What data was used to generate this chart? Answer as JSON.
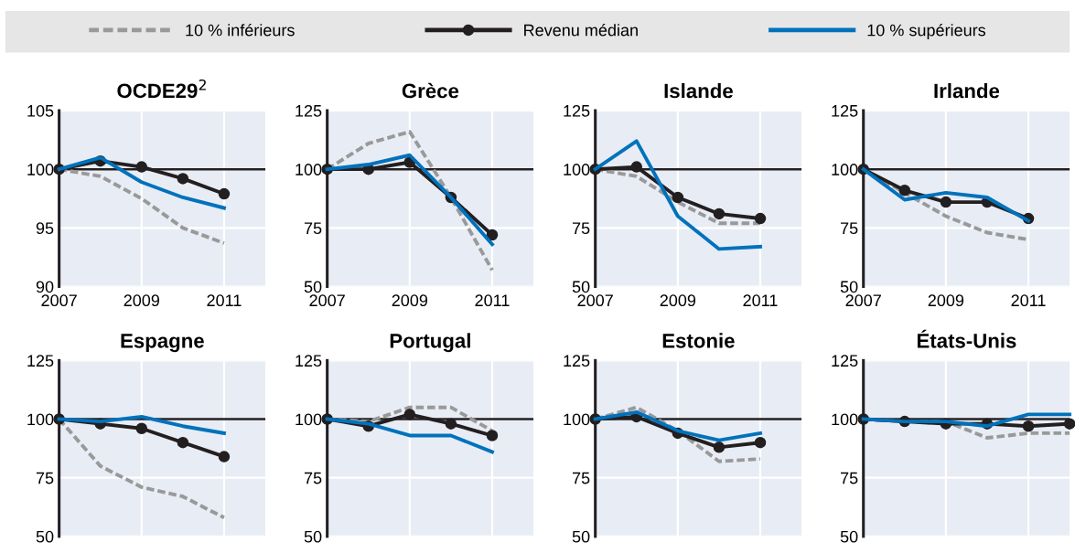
{
  "chart_data": [
    {
      "type": "line",
      "title": "OCDE29$^{2}$",
      "legend": "top",
      "grid": true,
      "x": [
        2007,
        2008,
        2009,
        2010,
        2011
      ],
      "xlim": [
        2007,
        2012
      ],
      "xticks": [
        2007,
        2009,
        2011
      ],
      "ylim": [
        90,
        105
      ],
      "yticks": [
        90,
        95,
        100,
        105
      ],
      "ref_lines": [
        {
          "axis": "y",
          "value": 100,
          "color": "#231f20"
        }
      ],
      "series": [
        {
          "name": "10 % inférieurs",
          "color": "#999999",
          "line_style": "dashed",
          "marker": "none",
          "values": [
            100,
            99.4,
            97.5,
            95,
            93.7
          ]
        },
        {
          "name": "Revenu médian",
          "color": "#231f20",
          "line_style": "solid",
          "marker": "circle",
          "values": [
            100,
            100.7,
            100.2,
            99.2,
            97.9
          ]
        },
        {
          "name": "10 % supérieurs",
          "color": "#0072bc",
          "line_style": "solid",
          "marker": "none",
          "values": [
            100,
            101,
            98.9,
            97.6,
            96.7
          ]
        }
      ]
    },
    {
      "type": "line",
      "title": "Grèce",
      "grid": true,
      "x": [
        2007,
        2008,
        2009,
        2010,
        2011
      ],
      "xlim": [
        2007,
        2012
      ],
      "xticks": [
        2007,
        2009,
        2011
      ],
      "ylim": [
        50,
        125
      ],
      "yticks": [
        50,
        75,
        100,
        125
      ],
      "ref_lines": [
        {
          "axis": "y",
          "value": 100,
          "color": "#231f20"
        }
      ],
      "series": [
        {
          "color": "#999999",
          "line_style": "dashed",
          "marker": "none",
          "values": [
            100,
            111,
            116,
            88,
            57
          ]
        },
        {
          "color": "#231f20",
          "line_style": "solid",
          "marker": "circle",
          "values": [
            100,
            100,
            103,
            88,
            72
          ]
        },
        {
          "color": "#0072bc",
          "line_style": "solid",
          "marker": "none",
          "values": [
            100,
            102,
            106,
            88,
            68
          ]
        }
      ]
    },
    {
      "type": "line",
      "title": "Islande",
      "grid": true,
      "x": [
        2007,
        2008,
        2009,
        2010,
        2011
      ],
      "xlim": [
        2007,
        2012
      ],
      "xticks": [
        2007,
        2009,
        2011
      ],
      "ylim": [
        50,
        125
      ],
      "yticks": [
        50,
        75,
        100,
        125
      ],
      "ref_lines": [
        {
          "axis": "y",
          "value": 100,
          "color": "#231f20"
        }
      ],
      "series": [
        {
          "color": "#999999",
          "line_style": "dashed",
          "marker": "none",
          "values": [
            100,
            97,
            86,
            77,
            77
          ]
        },
        {
          "color": "#231f20",
          "line_style": "solid",
          "marker": "circle",
          "values": [
            100,
            101,
            88,
            81,
            79
          ]
        },
        {
          "color": "#0072bc",
          "line_style": "solid",
          "marker": "none",
          "values": [
            100,
            112,
            80,
            66,
            67
          ]
        }
      ]
    },
    {
      "type": "line",
      "title": "Irlande",
      "grid": true,
      "x": [
        2007,
        2008,
        2009,
        2010,
        2011
      ],
      "xlim": [
        2007,
        2012
      ],
      "xticks": [
        2007,
        2009,
        2011
      ],
      "ylim": [
        50,
        125
      ],
      "yticks": [
        50,
        75,
        100,
        125
      ],
      "ref_lines": [
        {
          "axis": "y",
          "value": 100,
          "color": "#231f20"
        }
      ],
      "series": [
        {
          "color": "#999999",
          "line_style": "dashed",
          "marker": "none",
          "values": [
            100,
            90,
            80,
            73,
            70
          ]
        },
        {
          "color": "#231f20",
          "line_style": "solid",
          "marker": "circle",
          "values": [
            100,
            91,
            86,
            86,
            79
          ]
        },
        {
          "color": "#0072bc",
          "line_style": "solid",
          "marker": "none",
          "values": [
            100,
            87,
            90,
            88,
            78
          ]
        }
      ]
    },
    {
      "type": "line",
      "title": "Espagne",
      "grid": true,
      "tick_labels": "y",
      "x": [
        2007,
        2008,
        2009,
        2010,
        2011
      ],
      "xlim": [
        2007,
        2012
      ],
      "xticks": [
        2007,
        2009,
        2011
      ],
      "ylim": [
        50,
        125
      ],
      "yticks": [
        50,
        75,
        100,
        125
      ],
      "ref_lines": [
        {
          "axis": "y",
          "value": 100,
          "color": "#231f20"
        }
      ],
      "series": [
        {
          "color": "#999999",
          "line_style": "dashed",
          "marker": "none",
          "values": [
            100,
            80,
            71,
            67,
            58
          ]
        },
        {
          "color": "#231f20",
          "line_style": "solid",
          "marker": "circle",
          "values": [
            100,
            98,
            96,
            90,
            84
          ]
        },
        {
          "color": "#0072bc",
          "line_style": "solid",
          "marker": "none",
          "values": [
            100,
            99,
            101,
            97,
            94
          ]
        }
      ]
    },
    {
      "type": "line",
      "title": "Portugal",
      "grid": true,
      "tick_labels": "y",
      "x": [
        2007,
        2008,
        2009,
        2010,
        2011
      ],
      "xlim": [
        2007,
        2012
      ],
      "xticks": [
        2007,
        2009,
        2011
      ],
      "ylim": [
        50,
        125
      ],
      "yticks": [
        50,
        75,
        100,
        125
      ],
      "ref_lines": [
        {
          "axis": "y",
          "value": 100,
          "color": "#231f20"
        }
      ],
      "series": [
        {
          "color": "#999999",
          "line_style": "dashed",
          "marker": "none",
          "values": [
            100,
            99,
            105,
            105,
            95
          ]
        },
        {
          "color": "#231f20",
          "line_style": "solid",
          "marker": "circle",
          "values": [
            100,
            97,
            102,
            98,
            93
          ]
        },
        {
          "color": "#0072bc",
          "line_style": "solid",
          "marker": "none",
          "values": [
            100,
            98,
            93,
            93,
            86
          ]
        }
      ]
    },
    {
      "type": "line",
      "title": "Estonie",
      "grid": true,
      "tick_labels": "y",
      "x": [
        2007,
        2008,
        2009,
        2010,
        2011
      ],
      "xlim": [
        2007,
        2012
      ],
      "xticks": [
        2007,
        2009,
        2011
      ],
      "ylim": [
        50,
        125
      ],
      "yticks": [
        50,
        75,
        100,
        125
      ],
      "ref_lines": [
        {
          "axis": "y",
          "value": 100,
          "color": "#231f20"
        }
      ],
      "series": [
        {
          "color": "#999999",
          "line_style": "dashed",
          "marker": "none",
          "values": [
            100,
            105,
            95,
            82,
            83
          ]
        },
        {
          "color": "#231f20",
          "line_style": "solid",
          "marker": "circle",
          "values": [
            100,
            101,
            94,
            88,
            90
          ]
        },
        {
          "color": "#0072bc",
          "line_style": "solid",
          "marker": "none",
          "values": [
            100,
            103,
            95,
            91,
            94
          ]
        }
      ]
    },
    {
      "type": "line",
      "title": "États-Unis",
      "grid": true,
      "tick_labels": "y",
      "x": [
        2007,
        2008,
        2009,
        2010,
        2011,
        2012
      ],
      "xlim": [
        2007,
        2012
      ],
      "xticks": [
        2007,
        2009,
        2011
      ],
      "ylim": [
        50,
        125
      ],
      "yticks": [
        50,
        75,
        100,
        125
      ],
      "ref_lines": [
        {
          "axis": "y",
          "value": 100,
          "color": "#231f20"
        }
      ],
      "series": [
        {
          "color": "#999999",
          "line_style": "dashed",
          "marker": "none",
          "values": [
            100,
            99,
            99,
            92,
            94,
            94
          ]
        },
        {
          "color": "#231f20",
          "line_style": "solid",
          "marker": "circle",
          "values": [
            100,
            99,
            98,
            98,
            97,
            98
          ]
        },
        {
          "color": "#0072bc",
          "line_style": "solid",
          "marker": "none",
          "values": [
            100,
            99,
            99,
            97,
            102,
            102
          ]
        }
      ]
    }
  ]
}
